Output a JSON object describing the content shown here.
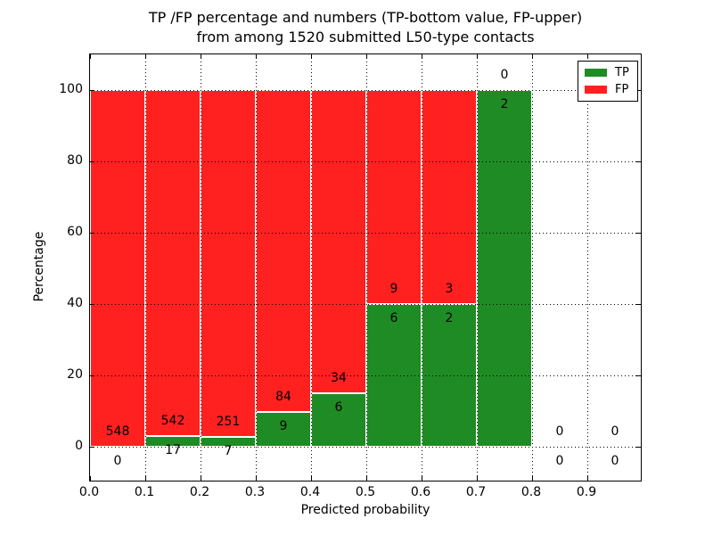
{
  "chart_data": {
    "type": "bar",
    "stacked_percentage": true,
    "title_line1": "TP /FP percentage and numbers (TP-bottom value, FP-upper)",
    "title_line2": "from among 1520 submitted L50-type contacts",
    "xlabel": "Predicted probability",
    "ylabel": "Percentage",
    "xlim": [
      0.0,
      1.0
    ],
    "ylim": [
      -10,
      110
    ],
    "x_ticks": [
      0.0,
      0.1,
      0.2,
      0.3,
      0.4,
      0.5,
      0.6,
      0.7,
      0.8,
      0.9
    ],
    "x_tick_labels": [
      "0.0",
      "0.1",
      "0.2",
      "0.3",
      "0.4",
      "0.5",
      "0.6",
      "0.7",
      "0.8",
      "0.9"
    ],
    "y_ticks": [
      0,
      20,
      40,
      60,
      80,
      100
    ],
    "y_tick_labels": [
      "0",
      "20",
      "40",
      "60",
      "80",
      "100"
    ],
    "grid_style": "dotted",
    "total_contacts": 1520,
    "legend": [
      {
        "label": "TP",
        "color": "#1f8b24"
      },
      {
        "label": "FP",
        "color": "#ff2020"
      }
    ],
    "colors": {
      "tp": "#1f8b24",
      "fp": "#ff2020",
      "bar_edge": "#ffffff",
      "grid": "#000000"
    },
    "bins": [
      {
        "range": [
          0.0,
          0.1
        ],
        "tp": 0,
        "fp": 548,
        "tp_pct": 0
      },
      {
        "range": [
          0.1,
          0.2
        ],
        "tp": 17,
        "fp": 542,
        "tp_pct": 3.04
      },
      {
        "range": [
          0.2,
          0.3
        ],
        "tp": 7,
        "fp": 251,
        "tp_pct": 2.71
      },
      {
        "range": [
          0.3,
          0.4
        ],
        "tp": 9,
        "fp": 84,
        "tp_pct": 9.68
      },
      {
        "range": [
          0.4,
          0.5
        ],
        "tp": 6,
        "fp": 34,
        "tp_pct": 15.0
      },
      {
        "range": [
          0.5,
          0.6
        ],
        "tp": 6,
        "fp": 9,
        "tp_pct": 40.0
      },
      {
        "range": [
          0.6,
          0.7
        ],
        "tp": 2,
        "fp": 3,
        "tp_pct": 40.0
      },
      {
        "range": [
          0.7,
          0.8
        ],
        "tp": 2,
        "fp": 0,
        "tp_pct": 100.0
      },
      {
        "range": [
          0.8,
          0.9
        ],
        "tp": 0,
        "fp": 0,
        "tp_pct": null
      },
      {
        "range": [
          0.9,
          1.0
        ],
        "tp": 0,
        "fp": 0,
        "tp_pct": null
      }
    ]
  }
}
